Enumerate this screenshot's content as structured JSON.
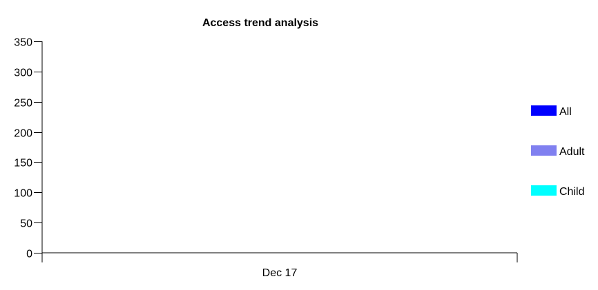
{
  "chart_data": {
    "type": "bar",
    "title": "Access trend analysis",
    "xlabel": "",
    "ylabel": "",
    "categories": [
      "Dec 17"
    ],
    "ylim": [
      0,
      350
    ],
    "yticks": [
      0,
      50,
      100,
      150,
      200,
      250,
      300,
      350
    ],
    "ytick_labels": [
      "0",
      "50",
      "100",
      "150",
      "200",
      "250",
      "300",
      "350"
    ],
    "grid": false,
    "legend_position": "right",
    "series": [
      {
        "name": "All",
        "color": "#0000ff",
        "values": [
          0
        ]
      },
      {
        "name": "Adult",
        "color": "#8080f0",
        "values": [
          0
        ]
      },
      {
        "name": "Child",
        "color": "#00ffff",
        "values": [
          0
        ]
      }
    ]
  }
}
